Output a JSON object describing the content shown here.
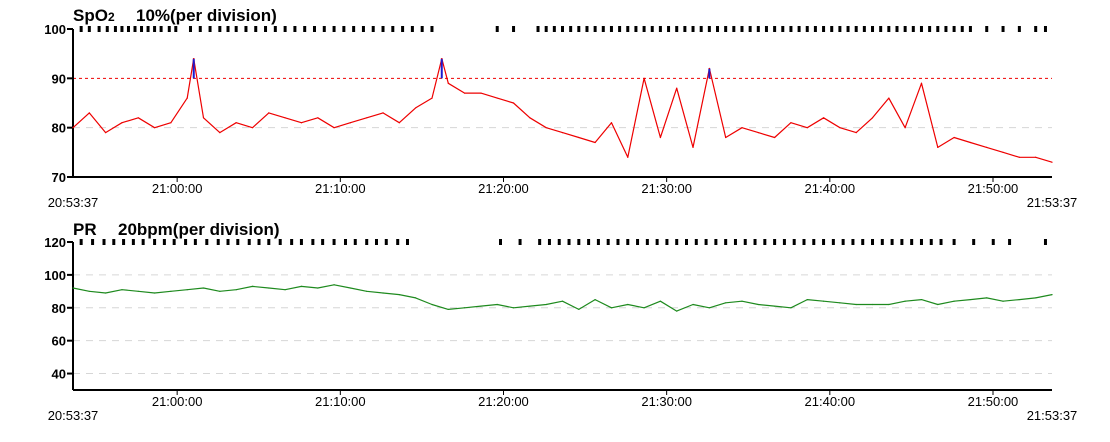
{
  "chart_data": [
    {
      "type": "line",
      "title_main": "SpO",
      "title_sub": "2",
      "title_scale": "10%(per division)",
      "ylim": [
        70,
        100
      ],
      "yticks": [
        70,
        80,
        90,
        100
      ],
      "tick_labels": [
        "70",
        "80",
        "90",
        "100"
      ],
      "threshold": 90,
      "xlim": [
        "20:53:37",
        "21:53:37"
      ],
      "xticks": [
        "21:00:00",
        "21:10:00",
        "21:20:00",
        "21:30:00",
        "21:40:00",
        "21:50:00"
      ],
      "x_start_label": "20:53:37",
      "x_end_label": "21:53:37",
      "series": [
        {
          "color": "#ee0000",
          "above_threshold_color": "#1a1ad0",
          "t_min": [
            0,
            1,
            2,
            3,
            4,
            5,
            6,
            7,
            7.4,
            8,
            9,
            10,
            11,
            12,
            13,
            14,
            15,
            16,
            17,
            18,
            19,
            20,
            21,
            22,
            22.6,
            23,
            24,
            25,
            26,
            27,
            28,
            29,
            30,
            31,
            32,
            33,
            34,
            35,
            36,
            37,
            38,
            39,
            40,
            41,
            42,
            43,
            44,
            45,
            46,
            47,
            48,
            49,
            50,
            51,
            52,
            53,
            54,
            55,
            56,
            57,
            58,
            59,
            60
          ],
          "values": [
            80,
            83,
            79,
            81,
            82,
            80,
            81,
            86,
            94,
            82,
            79,
            81,
            80,
            83,
            82,
            81,
            82,
            80,
            81,
            82,
            83,
            81,
            84,
            86,
            94,
            89,
            87,
            87,
            86,
            85,
            82,
            80,
            79,
            78,
            77,
            81,
            74,
            90,
            78,
            88,
            76,
            92,
            78,
            80,
            79,
            78,
            81,
            80,
            82,
            80,
            79,
            82,
            86,
            80,
            89,
            76,
            78,
            77,
            76,
            75,
            74,
            74,
            73
          ]
        }
      ],
      "event_marks": [
        0.5,
        1.0,
        1.6,
        2.1,
        2.6,
        3.0,
        3.4,
        3.8,
        4.2,
        4.6,
        5.0,
        5.4,
        5.9,
        6.3,
        7.2,
        7.8,
        8.4,
        9.0,
        9.5,
        10.0,
        10.6,
        11.2,
        11.8,
        12.4,
        13.0,
        13.6,
        14.2,
        14.8,
        15.4,
        16.0,
        16.6,
        17.2,
        17.8,
        18.4,
        19.0,
        19.6,
        20.2,
        20.8,
        21.4,
        22.0,
        26.0,
        27.0,
        28.5,
        29.0,
        29.5,
        30.0,
        30.5,
        31.0,
        31.5,
        32.0,
        32.5,
        33.0,
        33.5,
        34.0,
        34.5,
        35.0,
        35.5,
        36.0,
        36.5,
        37.0,
        37.5,
        38.0,
        38.5,
        39.0,
        39.5,
        40.0,
        40.5,
        41.0,
        41.5,
        42.0,
        42.5,
        43.0,
        43.5,
        44.0,
        44.5,
        45.0,
        45.5,
        46.0,
        46.5,
        47.0,
        47.5,
        48.0,
        48.5,
        49.0,
        49.5,
        50.0,
        50.5,
        51.0,
        51.5,
        52.0,
        52.5,
        53.0,
        53.5,
        54.0,
        54.5,
        55.0,
        56.0,
        57.0,
        58.0,
        59.0,
        59.6
      ]
    },
    {
      "type": "line",
      "title_main": "PR",
      "title_scale": "20bpm(per division)",
      "ylim": [
        30,
        120
      ],
      "yticks": [
        40,
        60,
        80,
        100,
        120
      ],
      "tick_labels": [
        "40",
        "60",
        "80",
        "100",
        "120"
      ],
      "xlim": [
        "20:53:37",
        "21:53:37"
      ],
      "xticks": [
        "21:00:00",
        "21:10:00",
        "21:20:00",
        "21:30:00",
        "21:40:00",
        "21:50:00"
      ],
      "x_start_label": "20:53:37",
      "x_end_label": "21:53:37",
      "series": [
        {
          "color": "#1e8a1e",
          "t_min": [
            0,
            1,
            2,
            3,
            4,
            5,
            6,
            7,
            8,
            9,
            10,
            11,
            12,
            13,
            14,
            15,
            16,
            17,
            18,
            19,
            20,
            21,
            22,
            23,
            24,
            25,
            26,
            27,
            28,
            29,
            30,
            31,
            32,
            33,
            34,
            35,
            36,
            37,
            38,
            39,
            40,
            41,
            42,
            43,
            44,
            45,
            46,
            47,
            48,
            49,
            50,
            51,
            52,
            53,
            54,
            55,
            56,
            57,
            58,
            59,
            60
          ],
          "values": [
            92,
            90,
            89,
            91,
            90,
            89,
            90,
            91,
            92,
            90,
            91,
            93,
            92,
            91,
            93,
            92,
            94,
            92,
            90,
            89,
            88,
            86,
            82,
            79,
            80,
            81,
            82,
            80,
            81,
            82,
            84,
            79,
            85,
            80,
            82,
            80,
            84,
            78,
            82,
            80,
            83,
            84,
            82,
            81,
            80,
            85,
            84,
            83,
            82,
            82,
            82,
            84,
            85,
            82,
            84,
            85,
            86,
            84,
            85,
            86,
            88
          ]
        }
      ],
      "event_marks": [
        0.5,
        1.2,
        1.9,
        2.5,
        3.1,
        3.7,
        4.3,
        5.0,
        5.6,
        6.2,
        6.9,
        7.5,
        8.2,
        8.9,
        9.5,
        10.1,
        10.8,
        11.4,
        12.0,
        12.7,
        13.4,
        14.0,
        14.7,
        15.3,
        16.0,
        16.7,
        17.3,
        18.0,
        18.6,
        19.2,
        19.9,
        20.5,
        26.2,
        27.4,
        28.6,
        29.2,
        29.8,
        30.4,
        31.0,
        31.6,
        32.2,
        32.8,
        33.4,
        34.0,
        34.6,
        35.2,
        35.8,
        36.4,
        37.0,
        37.6,
        38.2,
        38.8,
        39.4,
        40.0,
        40.6,
        41.2,
        41.8,
        42.4,
        43.0,
        43.6,
        44.2,
        44.8,
        45.4,
        46.0,
        46.6,
        47.2,
        47.8,
        48.4,
        49.0,
        49.6,
        50.2,
        50.8,
        51.4,
        52.0,
        52.6,
        53.2,
        54.0,
        55.2,
        56.4,
        57.4,
        59.6
      ]
    }
  ]
}
